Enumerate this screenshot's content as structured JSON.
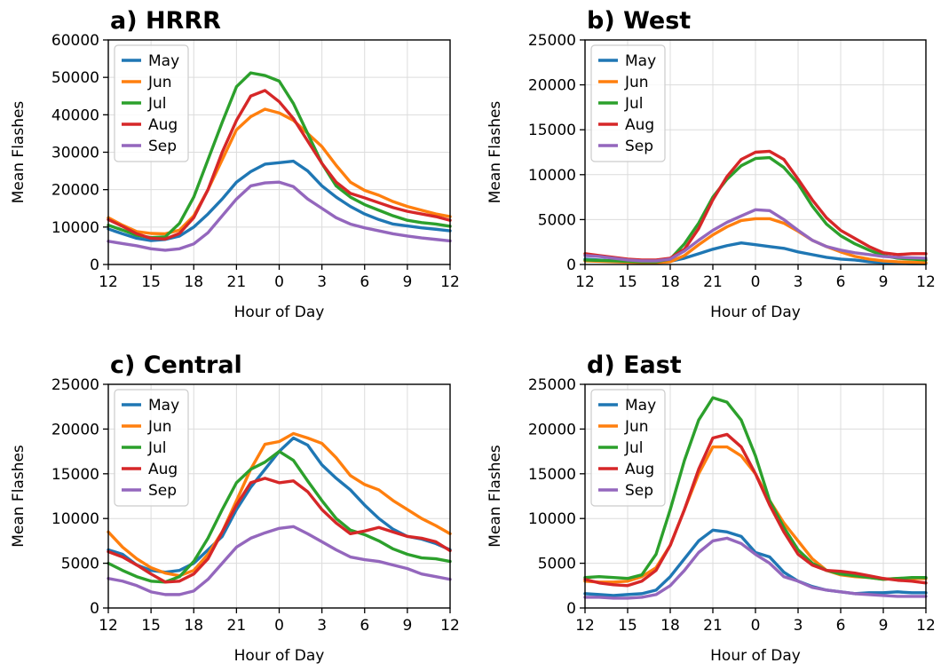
{
  "figure": {
    "colors": {
      "May": "#1f77b4",
      "Jun": "#ff7f0e",
      "Jul": "#2ca02c",
      "Aug": "#d62728",
      "Sep": "#9467bd"
    }
  },
  "chart_data": [
    {
      "type": "line",
      "title": "a) HRRR",
      "xlabel": "Hour of Day",
      "ylabel": "Mean Flashes",
      "xticks": [
        "12",
        "15",
        "18",
        "21",
        "0",
        "3",
        "6",
        "9",
        "12"
      ],
      "x": [
        12,
        13,
        14,
        15,
        16,
        17,
        18,
        19,
        20,
        21,
        22,
        23,
        0,
        1,
        2,
        3,
        4,
        5,
        6,
        7,
        8,
        9,
        10,
        11,
        12
      ],
      "ylim": [
        0,
        60000
      ],
      "yticks": [
        "0",
        "10000",
        "20000",
        "30000",
        "40000",
        "50000",
        "60000"
      ],
      "legend": "upper-left",
      "grid": true,
      "series": [
        {
          "name": "May",
          "values": [
            9500,
            8200,
            7000,
            6400,
            6700,
            7600,
            10000,
            13500,
            17500,
            22000,
            24800,
            26800,
            27200,
            27600,
            25000,
            21000,
            18000,
            15500,
            13500,
            12000,
            10800,
            10300,
            9800,
            9400,
            9000
          ]
        },
        {
          "name": "Jun",
          "values": [
            12500,
            10500,
            8800,
            8300,
            8200,
            9200,
            13000,
            20000,
            28000,
            36000,
            39500,
            41500,
            40500,
            38500,
            35000,
            31500,
            26500,
            22000,
            19800,
            18500,
            16800,
            15500,
            14500,
            13500,
            12800
          ]
        },
        {
          "name": "Jul",
          "values": [
            10500,
            9200,
            7800,
            7200,
            7400,
            11000,
            18000,
            28000,
            38000,
            47500,
            51200,
            50500,
            49000,
            43000,
            35000,
            27000,
            21000,
            18000,
            16000,
            14500,
            13000,
            11800,
            11200,
            10800,
            10200
          ]
        },
        {
          "name": "Aug",
          "values": [
            12000,
            10200,
            8200,
            7000,
            6800,
            8300,
            12500,
            20000,
            30000,
            38500,
            45000,
            46500,
            43500,
            39000,
            33000,
            27000,
            22000,
            19000,
            17800,
            16500,
            15200,
            14200,
            13500,
            12800,
            11800
          ]
        },
        {
          "name": "Sep",
          "values": [
            6200,
            5600,
            5000,
            4200,
            3800,
            4200,
            5500,
            8500,
            13000,
            17500,
            21000,
            21800,
            22000,
            20800,
            17500,
            15000,
            12500,
            10800,
            9800,
            9000,
            8200,
            7600,
            7100,
            6700,
            6300
          ]
        }
      ]
    },
    {
      "type": "line",
      "title": "b) West",
      "xlabel": "Hour of Day",
      "ylabel": "Mean Flashes",
      "xticks": [
        "12",
        "15",
        "18",
        "21",
        "0",
        "3",
        "6",
        "9",
        "12"
      ],
      "x": [
        12,
        13,
        14,
        15,
        16,
        17,
        18,
        19,
        20,
        21,
        22,
        23,
        0,
        1,
        2,
        3,
        4,
        5,
        6,
        7,
        8,
        9,
        10,
        11,
        12
      ],
      "ylim": [
        0,
        25000
      ],
      "yticks": [
        "0",
        "5000",
        "10000",
        "15000",
        "20000",
        "25000"
      ],
      "legend": "upper-left",
      "grid": true,
      "series": [
        {
          "name": "May",
          "values": [
            600,
            500,
            400,
            350,
            300,
            300,
            350,
            700,
            1200,
            1700,
            2100,
            2400,
            2200,
            2000,
            1800,
            1400,
            1100,
            800,
            600,
            500,
            300,
            200,
            150,
            100,
            100
          ]
        },
        {
          "name": "Jun",
          "values": [
            400,
            350,
            300,
            250,
            200,
            200,
            300,
            1000,
            2200,
            3300,
            4200,
            4900,
            5100,
            5100,
            4600,
            3700,
            2700,
            2000,
            1400,
            900,
            600,
            400,
            300,
            250,
            200
          ]
        },
        {
          "name": "Jul",
          "values": [
            500,
            450,
            400,
            350,
            300,
            300,
            600,
            2300,
            4600,
            7500,
            9500,
            11000,
            11800,
            11900,
            10800,
            9000,
            6500,
            4500,
            3200,
            2300,
            1600,
            1000,
            700,
            600,
            500
          ]
        },
        {
          "name": "Aug",
          "values": [
            1200,
            1000,
            800,
            600,
            500,
            500,
            700,
            1700,
            4000,
            7200,
            9800,
            11700,
            12500,
            12600,
            11700,
            9500,
            7200,
            5200,
            3800,
            2900,
            2000,
            1300,
            1100,
            1200,
            1200
          ]
        },
        {
          "name": "Sep",
          "values": [
            1000,
            900,
            700,
            500,
            400,
            400,
            600,
            1500,
            2700,
            3800,
            4700,
            5400,
            6100,
            6000,
            5000,
            3800,
            2700,
            2000,
            1600,
            1300,
            1100,
            900,
            800,
            750,
            700
          ]
        }
      ]
    },
    {
      "type": "line",
      "title": "c) Central",
      "xlabel": "Hour of Day",
      "ylabel": "Mean Flashes",
      "xticks": [
        "12",
        "15",
        "18",
        "21",
        "0",
        "3",
        "6",
        "9",
        "12"
      ],
      "x": [
        12,
        13,
        14,
        15,
        16,
        17,
        18,
        19,
        20,
        21,
        22,
        23,
        0,
        1,
        2,
        3,
        4,
        5,
        6,
        7,
        8,
        9,
        10,
        11,
        12
      ],
      "ylim": [
        0,
        25000
      ],
      "yticks": [
        "0",
        "5000",
        "10000",
        "15000",
        "20000",
        "25000"
      ],
      "legend": "upper-left",
      "grid": true,
      "series": [
        {
          "name": "May",
          "values": [
            6500,
            6000,
            4800,
            4200,
            4000,
            4200,
            5000,
            6500,
            8000,
            11000,
            13500,
            15500,
            17500,
            19000,
            18200,
            16000,
            14500,
            13200,
            11500,
            10000,
            8800,
            8000,
            7700,
            7200,
            6500
          ]
        },
        {
          "name": "Jun",
          "values": [
            8500,
            6800,
            5500,
            4500,
            3900,
            3600,
            4200,
            6000,
            8500,
            12000,
            15500,
            18300,
            18600,
            19500,
            19000,
            18400,
            16800,
            14800,
            13800,
            13200,
            12000,
            11000,
            10000,
            9200,
            8300
          ]
        },
        {
          "name": "Jul",
          "values": [
            5000,
            4200,
            3500,
            3000,
            2900,
            3500,
            5200,
            7800,
            11000,
            14000,
            15500,
            16300,
            17500,
            16500,
            14200,
            12000,
            10000,
            8700,
            8200,
            7500,
            6600,
            6000,
            5600,
            5500,
            5200
          ]
        },
        {
          "name": "Aug",
          "values": [
            6300,
            5700,
            4800,
            3800,
            2900,
            3000,
            3800,
            5500,
            8500,
            11500,
            14000,
            14500,
            14000,
            14200,
            13000,
            11000,
            9500,
            8300,
            8600,
            9000,
            8500,
            8000,
            7800,
            7400,
            6400
          ]
        },
        {
          "name": "Sep",
          "values": [
            3300,
            3000,
            2500,
            1800,
            1500,
            1500,
            1900,
            3200,
            5000,
            6800,
            7800,
            8400,
            8900,
            9100,
            8300,
            7400,
            6500,
            5700,
            5400,
            5200,
            4800,
            4400,
            3800,
            3500,
            3200
          ]
        }
      ]
    },
    {
      "type": "line",
      "title": "d) East",
      "xlabel": "Hour of Day",
      "ylabel": "Mean Flashes",
      "xticks": [
        "12",
        "15",
        "18",
        "21",
        "0",
        "3",
        "6",
        "9",
        "12"
      ],
      "x": [
        12,
        13,
        14,
        15,
        16,
        17,
        18,
        19,
        20,
        21,
        22,
        23,
        0,
        1,
        2,
        3,
        4,
        5,
        6,
        7,
        8,
        9,
        10,
        11,
        12
      ],
      "ylim": [
        0,
        25000
      ],
      "yticks": [
        "0",
        "5000",
        "10000",
        "15000",
        "20000",
        "25000"
      ],
      "legend": "upper-left",
      "grid": true,
      "series": [
        {
          "name": "May",
          "values": [
            1600,
            1500,
            1400,
            1500,
            1600,
            2000,
            3500,
            5500,
            7500,
            8700,
            8500,
            8000,
            6200,
            5700,
            4000,
            3000,
            2400,
            2000,
            1800,
            1600,
            1700,
            1700,
            1800,
            1700,
            1700
          ]
        },
        {
          "name": "Jun",
          "values": [
            3000,
            2900,
            2900,
            3000,
            3500,
            4500,
            7000,
            11000,
            15000,
            18000,
            18000,
            17000,
            15000,
            12000,
            9500,
            7500,
            5500,
            4200,
            3700,
            3500,
            3400,
            3200,
            3300,
            3300,
            3300
          ]
        },
        {
          "name": "Jul",
          "values": [
            3400,
            3500,
            3400,
            3300,
            3700,
            6000,
            11000,
            16500,
            21000,
            23500,
            23000,
            21000,
            17000,
            12000,
            9000,
            6500,
            5000,
            4200,
            3800,
            3600,
            3400,
            3200,
            3300,
            3400,
            3400
          ]
        },
        {
          "name": "Aug",
          "values": [
            3200,
            2800,
            2600,
            2500,
            3000,
            4200,
            7000,
            11000,
            15500,
            19000,
            19400,
            18000,
            15000,
            11500,
            8500,
            6000,
            4800,
            4200,
            4100,
            3900,
            3600,
            3300,
            3100,
            3000,
            2800
          ]
        },
        {
          "name": "Sep",
          "values": [
            1200,
            1200,
            1100,
            1100,
            1200,
            1500,
            2500,
            4200,
            6200,
            7500,
            7800,
            7200,
            6000,
            5000,
            3500,
            3000,
            2300,
            2000,
            1800,
            1600,
            1500,
            1400,
            1300,
            1300,
            1300
          ]
        }
      ]
    }
  ]
}
